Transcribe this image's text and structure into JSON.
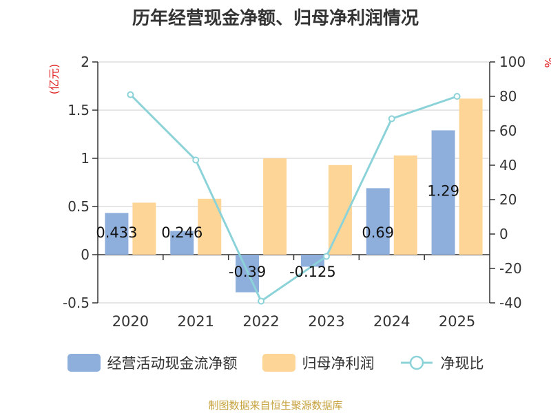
{
  "colors": {
    "cash_bar": "#8EAEDB",
    "profit_bar": "#FDD697",
    "ratio_line": "#8CD3D9",
    "axis_unit": "#E02020",
    "source_text": "#C6A13C"
  },
  "chart_data": {
    "type": "bar",
    "title": "历年经营现金净额、归母净利润情况",
    "categories": [
      "2020",
      "2021",
      "2022",
      "2023",
      "2024",
      "2025"
    ],
    "ylabel": "(亿元)",
    "y2label": "%",
    "ylim": [
      -0.5,
      2
    ],
    "yticks": [
      "2",
      "1.5",
      "1",
      "0.5",
      "0",
      "-0.5"
    ],
    "y2lim": [
      -40,
      100
    ],
    "y2ticks": [
      "100",
      "80",
      "60",
      "40",
      "20",
      "0",
      "-20",
      "-40"
    ],
    "series": [
      {
        "name": "经营活动现金流净额",
        "kind": "bar",
        "values": [
          0.433,
          0.246,
          -0.39,
          -0.125,
          0.69,
          1.29
        ],
        "labels": [
          "0.433",
          "0.246",
          "-0.39",
          "-0.125",
          "0.69",
          "1.29"
        ]
      },
      {
        "name": "归母净利润",
        "kind": "bar",
        "values": [
          0.54,
          0.58,
          1.0,
          0.93,
          1.03,
          1.62
        ]
      },
      {
        "name": "净现比",
        "kind": "line",
        "axis": "right",
        "values": [
          81,
          43,
          -39,
          -13,
          67,
          80
        ]
      }
    ]
  },
  "source": "制图数据来自恒生聚源数据库"
}
